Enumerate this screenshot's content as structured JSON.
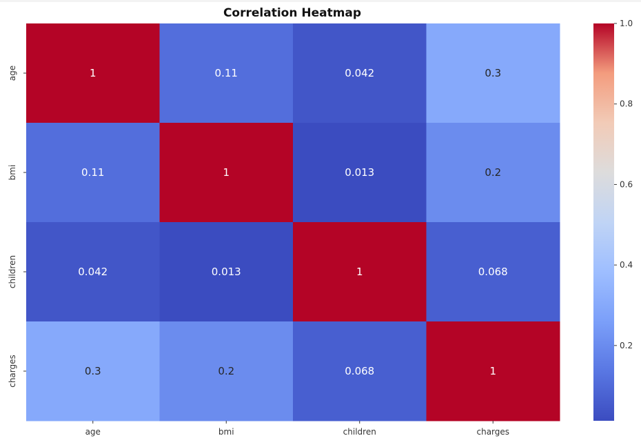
{
  "chart_data": {
    "type": "heatmap",
    "title": "Correlation Heatmap",
    "x_labels": [
      "age",
      "bmi",
      "children",
      "charges"
    ],
    "y_labels": [
      "age",
      "bmi",
      "children",
      "charges"
    ],
    "values": [
      [
        1.0,
        0.11,
        0.042,
        0.3
      ],
      [
        0.11,
        1.0,
        0.013,
        0.2
      ],
      [
        0.042,
        0.013,
        1.0,
        0.068
      ],
      [
        0.3,
        0.2,
        0.068,
        1.0
      ]
    ],
    "annotations": [
      [
        "1",
        "0.11",
        "0.042",
        "0.3"
      ],
      [
        "0.11",
        "1",
        "0.013",
        "0.2"
      ],
      [
        "0.042",
        "0.013",
        "1",
        "0.068"
      ],
      [
        "0.3",
        "0.2",
        "0.068",
        "1"
      ]
    ],
    "colormap": "coolwarm",
    "color_range": [
      0.013,
      1.0
    ],
    "colorbar_ticks": [
      "0.2",
      "0.4",
      "0.6",
      "0.8",
      "1.0"
    ],
    "colorbar_tick_values": [
      0.2,
      0.4,
      0.6,
      0.8,
      1.0
    ],
    "xlabel": "",
    "ylabel": "",
    "grid": false,
    "legend": "colorbar-right"
  }
}
